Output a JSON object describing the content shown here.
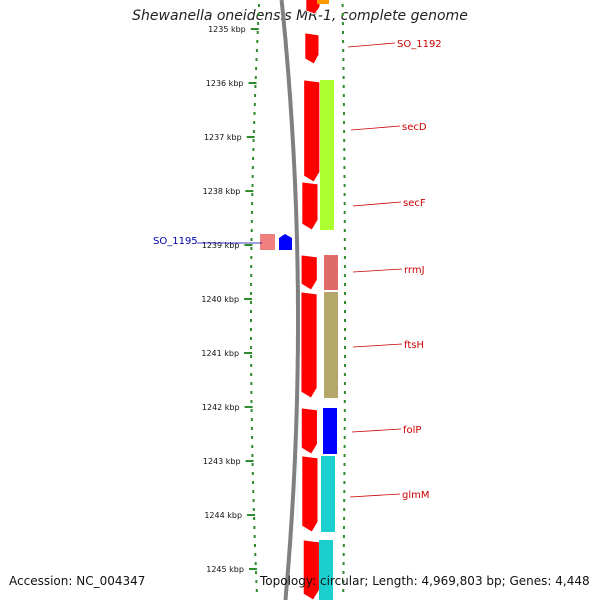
{
  "title": "Shewanella oneidensis MR-1, complete genome",
  "accession": "Accession: NC_004347",
  "topology": "Topology: circular; Length: 4,969,803 bp; Genes: 4,448",
  "ticks": [
    "1235 kbp",
    "1236 kbp",
    "1237 kbp",
    "1238 kbp",
    "1239 kbp",
    "1240 kbp",
    "1241 kbp",
    "1242 kbp",
    "1243 kbp",
    "1244 kbp",
    "1245 kbp"
  ],
  "colors": {
    "backbone": "#808080",
    "tick_green": "#2e8b2e",
    "label_red": "#cc0000",
    "label_blue": "#0000aa",
    "strand_red": "#ff0000",
    "lime": "#adff2f",
    "rose": "#e06a6a",
    "olive": "#b5a66a",
    "blue": "#0000ff",
    "cyan": "#1ccfcf",
    "orange": "#ff9900",
    "pink": "#f08080"
  },
  "genes": [
    {
      "label": "SO_1192",
      "color": "red"
    },
    {
      "label": "secD",
      "color": "red"
    },
    {
      "label": "secF",
      "color": "red"
    },
    {
      "label": "SO_1195",
      "color": "blue"
    },
    {
      "label": "rrmJ",
      "color": "red"
    },
    {
      "label": "ftsH",
      "color": "red"
    },
    {
      "label": "folP",
      "color": "red"
    },
    {
      "label": "glmM",
      "color": "red"
    }
  ]
}
